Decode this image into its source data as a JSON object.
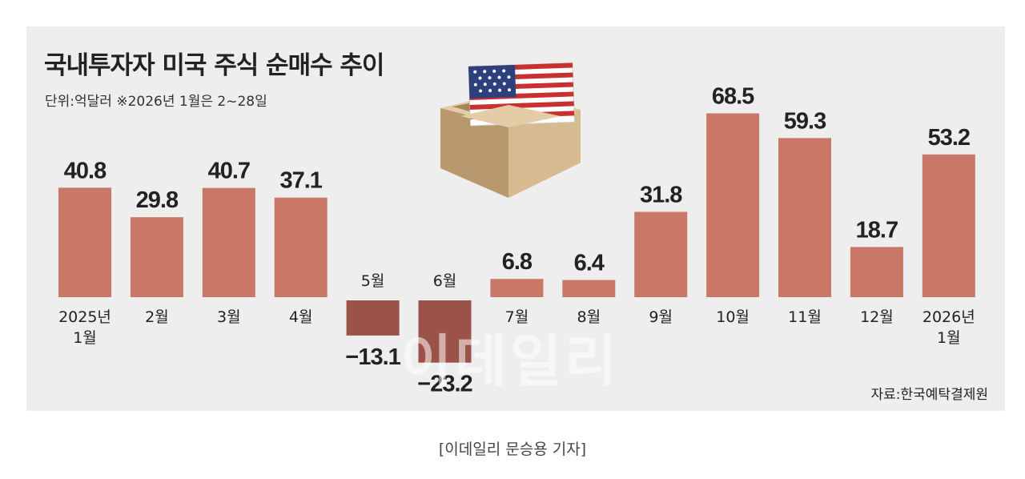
{
  "header": {
    "title": "국내투자자 미국 주식 순매수 추이",
    "unit_note": "단위:억달러  ※2026년 1월은 2~28일"
  },
  "footer": {
    "source": "자료:한국예탁결제원",
    "watermark": "이데일리",
    "credit": "[이데일리 문승용 기자]"
  },
  "colors": {
    "positive_bar": "#c97868",
    "negative_bar": "#9b5248"
  },
  "illustration": "us-flag-ballot-box-icon",
  "chart_data": {
    "type": "bar",
    "categories": [
      "2025년\n1월",
      "2월",
      "3월",
      "4월",
      "5월",
      "6월",
      "7월",
      "8월",
      "9월",
      "10월",
      "11월",
      "12월",
      "2026년\n1월"
    ],
    "values": [
      40.8,
      29.8,
      40.7,
      37.1,
      -13.1,
      -23.2,
      6.8,
      6.4,
      31.8,
      68.5,
      59.3,
      18.7,
      53.2
    ],
    "value_labels": [
      "40.8",
      "29.8",
      "40.7",
      "37.1",
      "−13.1",
      "−23.2",
      "6.8",
      "6.4",
      "31.8",
      "68.5",
      "59.3",
      "18.7",
      "53.2"
    ],
    "title": "국내투자자 미국 주식 순매수 추이",
    "xlabel": "",
    "ylabel": "",
    "grid": false
  }
}
